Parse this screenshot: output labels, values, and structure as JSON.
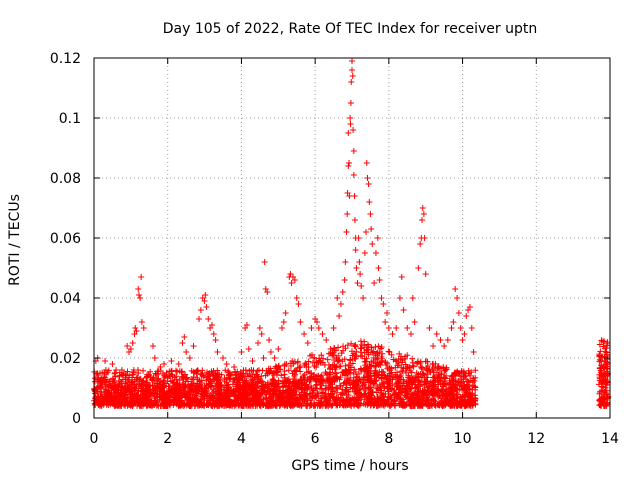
{
  "chart_data": {
    "type": "scatter",
    "title": "Day 105 of 2022, Rate Of TEC Index for receiver uptn",
    "xlabel": "GPS time / hours",
    "ylabel": "ROTI / TECUs",
    "xlim": [
      0,
      14
    ],
    "ylim": [
      0,
      0.12
    ],
    "x_ticks": [
      "0",
      "2",
      "4",
      "6",
      "8",
      "10",
      "12",
      "14"
    ],
    "y_ticks": [
      "0",
      "0.02",
      "0.04",
      "0.06",
      "0.08",
      "0.1",
      "0.12"
    ],
    "grid": true,
    "marker": "plus",
    "colors": {
      "marker": "#ff0000"
    },
    "bands": [
      {
        "x_start": 0.0,
        "x_end": 10.35,
        "base_low": 0.004,
        "base_high": 0.016
      },
      {
        "x_start": 13.7,
        "x_end": 13.95,
        "base_low": 0.004,
        "base_high": 0.026
      }
    ],
    "series": [
      {
        "points": [
          [
            0.05,
            0.019
          ],
          [
            0.1,
            0.02
          ],
          [
            0.3,
            0.019
          ],
          [
            0.5,
            0.018
          ],
          [
            0.6,
            0.016
          ],
          [
            0.9,
            0.024
          ],
          [
            0.95,
            0.022
          ],
          [
            1.0,
            0.023
          ],
          [
            1.05,
            0.025
          ],
          [
            1.1,
            0.028
          ],
          [
            1.12,
            0.03
          ],
          [
            1.15,
            0.029
          ],
          [
            1.2,
            0.043
          ],
          [
            1.22,
            0.041
          ],
          [
            1.25,
            0.04
          ],
          [
            1.28,
            0.047
          ],
          [
            1.3,
            0.032
          ],
          [
            1.35,
            0.03
          ],
          [
            1.6,
            0.024
          ],
          [
            1.65,
            0.02
          ],
          [
            1.8,
            0.017
          ],
          [
            1.9,
            0.018
          ],
          [
            2.1,
            0.019
          ],
          [
            2.3,
            0.018
          ],
          [
            2.4,
            0.025
          ],
          [
            2.45,
            0.027
          ],
          [
            2.5,
            0.022
          ],
          [
            2.6,
            0.02
          ],
          [
            2.7,
            0.024
          ],
          [
            2.85,
            0.033
          ],
          [
            2.9,
            0.036
          ],
          [
            2.95,
            0.04
          ],
          [
            3.0,
            0.039
          ],
          [
            3.02,
            0.041
          ],
          [
            3.05,
            0.037
          ],
          [
            3.1,
            0.033
          ],
          [
            3.15,
            0.03
          ],
          [
            3.2,
            0.031
          ],
          [
            3.25,
            0.028
          ],
          [
            3.3,
            0.026
          ],
          [
            3.35,
            0.022
          ],
          [
            3.5,
            0.02
          ],
          [
            3.6,
            0.018
          ],
          [
            3.8,
            0.017
          ],
          [
            4.0,
            0.022
          ],
          [
            4.1,
            0.03
          ],
          [
            4.15,
            0.031
          ],
          [
            4.2,
            0.023
          ],
          [
            4.3,
            0.019
          ],
          [
            4.45,
            0.025
          ],
          [
            4.5,
            0.03
          ],
          [
            4.55,
            0.028
          ],
          [
            4.6,
            0.02
          ],
          [
            4.63,
            0.052
          ],
          [
            4.66,
            0.043
          ],
          [
            4.7,
            0.042
          ],
          [
            4.75,
            0.026
          ],
          [
            4.8,
            0.022
          ],
          [
            4.9,
            0.02
          ],
          [
            5.0,
            0.023
          ],
          [
            5.1,
            0.03
          ],
          [
            5.15,
            0.032
          ],
          [
            5.2,
            0.035
          ],
          [
            5.3,
            0.047
          ],
          [
            5.33,
            0.048
          ],
          [
            5.36,
            0.045
          ],
          [
            5.4,
            0.047
          ],
          [
            5.45,
            0.046
          ],
          [
            5.5,
            0.04
          ],
          [
            5.55,
            0.038
          ],
          [
            5.6,
            0.032
          ],
          [
            5.7,
            0.028
          ],
          [
            5.8,
            0.025
          ],
          [
            5.9,
            0.03
          ],
          [
            6.0,
            0.033
          ],
          [
            6.05,
            0.032
          ],
          [
            6.1,
            0.03
          ],
          [
            6.2,
            0.028
          ],
          [
            6.3,
            0.026
          ],
          [
            6.5,
            0.03
          ],
          [
            6.6,
            0.04
          ],
          [
            6.65,
            0.034
          ],
          [
            6.7,
            0.038
          ],
          [
            6.75,
            0.042
          ],
          [
            6.8,
            0.046
          ],
          [
            6.82,
            0.052
          ],
          [
            6.85,
            0.062
          ],
          [
            6.87,
            0.068
          ],
          [
            6.88,
            0.075
          ],
          [
            6.9,
            0.084
          ],
          [
            6.9,
            0.095
          ],
          [
            6.92,
            0.085
          ],
          [
            6.93,
            0.074
          ],
          [
            6.95,
            0.1
          ],
          [
            6.96,
            0.098
          ],
          [
            6.97,
            0.105
          ],
          [
            6.98,
            0.112
          ],
          [
            7.0,
            0.116
          ],
          [
            7.0,
            0.119
          ],
          [
            7.02,
            0.114
          ],
          [
            7.03,
            0.096
          ],
          [
            7.05,
            0.089
          ],
          [
            7.05,
            0.081
          ],
          [
            7.07,
            0.074
          ],
          [
            7.08,
            0.066
          ],
          [
            7.1,
            0.06
          ],
          [
            7.1,
            0.056
          ],
          [
            7.12,
            0.05
          ],
          [
            7.15,
            0.045
          ],
          [
            7.18,
            0.06
          ],
          [
            7.2,
            0.052
          ],
          [
            7.22,
            0.048
          ],
          [
            7.25,
            0.044
          ],
          [
            7.3,
            0.04
          ],
          [
            7.35,
            0.055
          ],
          [
            7.38,
            0.062
          ],
          [
            7.4,
            0.085
          ],
          [
            7.42,
            0.08
          ],
          [
            7.45,
            0.078
          ],
          [
            7.47,
            0.072
          ],
          [
            7.5,
            0.068
          ],
          [
            7.52,
            0.063
          ],
          [
            7.55,
            0.058
          ],
          [
            7.6,
            0.045
          ],
          [
            7.65,
            0.055
          ],
          [
            7.7,
            0.06
          ],
          [
            7.72,
            0.05
          ],
          [
            7.75,
            0.046
          ],
          [
            7.8,
            0.04
          ],
          [
            7.85,
            0.038
          ],
          [
            7.9,
            0.032
          ],
          [
            7.95,
            0.035
          ],
          [
            8.0,
            0.03
          ],
          [
            8.1,
            0.028
          ],
          [
            8.2,
            0.03
          ],
          [
            8.3,
            0.04
          ],
          [
            8.35,
            0.047
          ],
          [
            8.4,
            0.036
          ],
          [
            8.5,
            0.03
          ],
          [
            8.6,
            0.028
          ],
          [
            8.65,
            0.04
          ],
          [
            8.7,
            0.032
          ],
          [
            8.8,
            0.05
          ],
          [
            8.85,
            0.058
          ],
          [
            8.88,
            0.06
          ],
          [
            8.9,
            0.066
          ],
          [
            8.92,
            0.07
          ],
          [
            8.95,
            0.068
          ],
          [
            8.97,
            0.06
          ],
          [
            9.0,
            0.048
          ],
          [
            9.1,
            0.03
          ],
          [
            9.2,
            0.024
          ],
          [
            9.3,
            0.028
          ],
          [
            9.4,
            0.026
          ],
          [
            9.5,
            0.024
          ],
          [
            9.6,
            0.026
          ],
          [
            9.7,
            0.03
          ],
          [
            9.75,
            0.032
          ],
          [
            9.8,
            0.043
          ],
          [
            9.85,
            0.04
          ],
          [
            9.9,
            0.035
          ],
          [
            9.95,
            0.03
          ],
          [
            10.0,
            0.026
          ],
          [
            10.05,
            0.028
          ],
          [
            10.1,
            0.034
          ],
          [
            10.15,
            0.036
          ],
          [
            10.2,
            0.037
          ],
          [
            10.25,
            0.03
          ],
          [
            10.3,
            0.022
          ]
        ]
      }
    ]
  }
}
